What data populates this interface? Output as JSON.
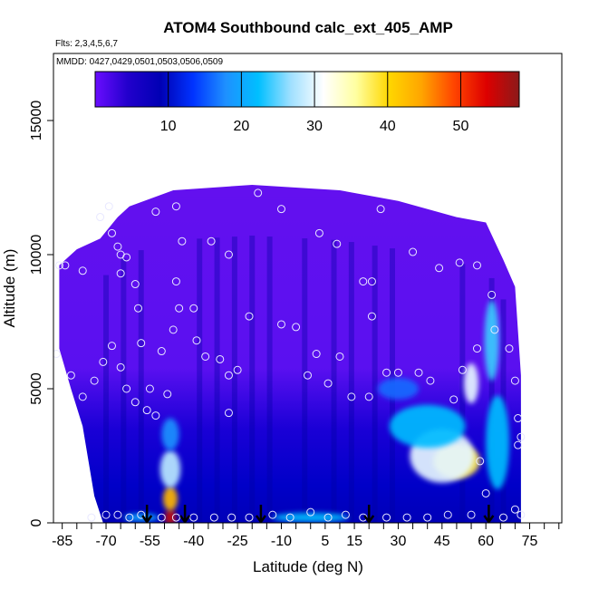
{
  "chart_data": {
    "type": "heatmap",
    "title": "ATOM4 Southbound calc_ext_405_AMP",
    "flights_note": "Flts: 2,3,4,5,6,7",
    "dates_note": "MMDD: 0427,0429,0501,0503,0506,0509",
    "xlabel": "Latitude (deg N)",
    "ylabel": "Altitude (m)",
    "xlim": [
      -88,
      86
    ],
    "ylim": [
      0,
      17500
    ],
    "xticks": [
      -85,
      -70,
      -55,
      -40,
      -25,
      -10,
      5,
      15,
      30,
      45,
      60,
      75
    ],
    "xtick_labels": [
      "-85",
      "-70",
      "-55",
      "-40",
      "-25",
      "-10",
      "5",
      "15",
      "30",
      "45",
      "60",
      "75"
    ],
    "yticks": [
      0,
      5000,
      10000,
      15000
    ],
    "ytick_labels": [
      "0",
      "5000",
      "10000",
      "15000"
    ],
    "colorbar": {
      "min": 0,
      "max": 58,
      "ticks": [
        10,
        20,
        30,
        40,
        50
      ],
      "tick_labels": [
        "10",
        "20",
        "30",
        "40",
        "50"
      ],
      "colors": [
        "#6a0dff",
        "#2200cc",
        "#0000b4",
        "#0033ff",
        "#1e90ff",
        "#00bfff",
        "#a0e0ff",
        "#ffffff",
        "#ffffa0",
        "#ffd700",
        "#ffa500",
        "#ff4500",
        "#dd0000",
        "#8b1a1a"
      ]
    },
    "envelope_top": [
      {
        "lat": -86,
        "alt": 9600
      },
      {
        "lat": -80,
        "alt": 10200
      },
      {
        "lat": -72,
        "alt": 10600
      },
      {
        "lat": -66,
        "alt": 11400
      },
      {
        "lat": -62,
        "alt": 11800
      },
      {
        "lat": -47,
        "alt": 12400
      },
      {
        "lat": -20,
        "alt": 12600
      },
      {
        "lat": 10,
        "alt": 12400
      },
      {
        "lat": 30,
        "alt": 12000
      },
      {
        "lat": 50,
        "alt": 11400
      },
      {
        "lat": 60,
        "alt": 11200
      },
      {
        "lat": 66,
        "alt": 9800
      },
      {
        "lat": 70,
        "alt": 8800
      },
      {
        "lat": 72,
        "alt": 5500
      }
    ],
    "envelope_bottom": [
      {
        "lat": -86,
        "alt": 6500
      },
      {
        "lat": -82,
        "alt": 5000
      },
      {
        "lat": -78,
        "alt": 3600
      },
      {
        "lat": -74,
        "alt": 1000
      },
      {
        "lat": -71,
        "alt": 0
      },
      {
        "lat": 72,
        "alt": 0
      }
    ],
    "hotspots": [
      {
        "lat": -48,
        "alt": 200,
        "value": 55,
        "width": 4,
        "height": 600
      },
      {
        "lat": -48,
        "alt": 900,
        "value": 43,
        "width": 5,
        "height": 900
      },
      {
        "lat": -48,
        "alt": 2000,
        "value": 28,
        "width": 7,
        "height": 1400
      },
      {
        "lat": -48,
        "alt": 3300,
        "value": 18,
        "width": 6,
        "height": 1200
      },
      {
        "lat": 50,
        "alt": 2300,
        "value": 38,
        "width": 16,
        "height": 1300
      },
      {
        "lat": 45,
        "alt": 2500,
        "value": 30,
        "width": 22,
        "height": 2000
      },
      {
        "lat": 40,
        "alt": 3600,
        "value": 22,
        "width": 26,
        "height": 1600
      },
      {
        "lat": 55,
        "alt": 5200,
        "value": 30,
        "width": 5,
        "height": 1500
      },
      {
        "lat": 62,
        "alt": 6800,
        "value": 24,
        "width": 5,
        "height": 3000
      },
      {
        "lat": 64,
        "alt": 3000,
        "value": 22,
        "width": 8,
        "height": 3500
      },
      {
        "lat": 0,
        "alt": 200,
        "value": 22,
        "width": 26,
        "height": 350
      },
      {
        "lat": -58,
        "alt": 200,
        "value": 20,
        "width": 12,
        "height": 300
      },
      {
        "lat": 30,
        "alt": 5000,
        "value": 16,
        "width": 14,
        "height": 800
      }
    ],
    "profile_markers_lat": [
      -56,
      -43,
      -17,
      20,
      61
    ],
    "sample_points": [
      {
        "lat": -86,
        "alt": 9600
      },
      {
        "lat": -84,
        "alt": 9600
      },
      {
        "lat": -78,
        "alt": 9400
      },
      {
        "lat": -72,
        "alt": 11400
      },
      {
        "lat": -69,
        "alt": 11800
      },
      {
        "lat": -68,
        "alt": 10800
      },
      {
        "lat": -66,
        "alt": 10300
      },
      {
        "lat": -65,
        "alt": 10000
      },
      {
        "lat": -63,
        "alt": 9900
      },
      {
        "lat": -65,
        "alt": 9300
      },
      {
        "lat": -60,
        "alt": 8900
      },
      {
        "lat": -59,
        "alt": 8000
      },
      {
        "lat": -53,
        "alt": 11600
      },
      {
        "lat": -46,
        "alt": 11800
      },
      {
        "lat": -44,
        "alt": 10500
      },
      {
        "lat": -46,
        "alt": 9000
      },
      {
        "lat": -45,
        "alt": 8000
      },
      {
        "lat": -40,
        "alt": 8000
      },
      {
        "lat": -47,
        "alt": 7200
      },
      {
        "lat": -34,
        "alt": 10500
      },
      {
        "lat": -28,
        "alt": 10000
      },
      {
        "lat": -18,
        "alt": 12300
      },
      {
        "lat": -10,
        "alt": 11700
      },
      {
        "lat": 3,
        "alt": 10800
      },
      {
        "lat": 9,
        "alt": 10400
      },
      {
        "lat": 18,
        "alt": 9000
      },
      {
        "lat": 21,
        "alt": 9000
      },
      {
        "lat": 24,
        "alt": 11700
      },
      {
        "lat": 35,
        "alt": 10100
      },
      {
        "lat": 44,
        "alt": 9500
      },
      {
        "lat": 51,
        "alt": 9700
      },
      {
        "lat": 57,
        "alt": 9600
      },
      {
        "lat": 62,
        "alt": 8500
      },
      {
        "lat": -87,
        "alt": 6300
      },
      {
        "lat": -82,
        "alt": 5500
      },
      {
        "lat": -78,
        "alt": 4700
      },
      {
        "lat": -74,
        "alt": 5300
      },
      {
        "lat": -71,
        "alt": 6000
      },
      {
        "lat": -68,
        "alt": 6600
      },
      {
        "lat": -65,
        "alt": 5800
      },
      {
        "lat": -63,
        "alt": 5000
      },
      {
        "lat": -60,
        "alt": 4500
      },
      {
        "lat": -58,
        "alt": 6700
      },
      {
        "lat": -55,
        "alt": 5000
      },
      {
        "lat": -53,
        "alt": 4000
      },
      {
        "lat": -51,
        "alt": 6400
      },
      {
        "lat": -49,
        "alt": 4800
      },
      {
        "lat": -39,
        "alt": 6800
      },
      {
        "lat": -36,
        "alt": 6200
      },
      {
        "lat": -31,
        "alt": 6100
      },
      {
        "lat": -28,
        "alt": 5500
      },
      {
        "lat": -25,
        "alt": 5700
      },
      {
        "lat": -21,
        "alt": 7700
      },
      {
        "lat": -10,
        "alt": 7400
      },
      {
        "lat": -5,
        "alt": 7300
      },
      {
        "lat": -1,
        "alt": 5500
      },
      {
        "lat": 2,
        "alt": 6300
      },
      {
        "lat": 6,
        "alt": 5200
      },
      {
        "lat": 10,
        "alt": 6200
      },
      {
        "lat": 14,
        "alt": 4700
      },
      {
        "lat": 21,
        "alt": 7700
      },
      {
        "lat": 20,
        "alt": 4700
      },
      {
        "lat": 26,
        "alt": 5600
      },
      {
        "lat": 30,
        "alt": 5600
      },
      {
        "lat": 37,
        "alt": 5600
      },
      {
        "lat": 41,
        "alt": 5300
      },
      {
        "lat": 49,
        "alt": 4600
      },
      {
        "lat": 52,
        "alt": 5700
      },
      {
        "lat": 57,
        "alt": 6500
      },
      {
        "lat": 63,
        "alt": 7200
      },
      {
        "lat": 68,
        "alt": 6500
      },
      {
        "lat": 70,
        "alt": 5300
      },
      {
        "lat": -28,
        "alt": 4100
      },
      {
        "lat": -56,
        "alt": 4200
      },
      {
        "lat": 71,
        "alt": 3900
      },
      {
        "lat": 72,
        "alt": 3200
      },
      {
        "lat": 71,
        "alt": 2900
      },
      {
        "lat": 58,
        "alt": 2300
      },
      {
        "lat": 60,
        "alt": 1100
      },
      {
        "lat": 55,
        "alt": 300
      },
      {
        "lat": 47,
        "alt": 300
      },
      {
        "lat": -75,
        "alt": 200
      },
      {
        "lat": -70,
        "alt": 300
      },
      {
        "lat": -66,
        "alt": 300
      },
      {
        "lat": -62,
        "alt": 200
      },
      {
        "lat": -58,
        "alt": 300
      },
      {
        "lat": -51,
        "alt": 200
      },
      {
        "lat": -46,
        "alt": 200
      },
      {
        "lat": -40,
        "alt": 200
      },
      {
        "lat": -33,
        "alt": 200
      },
      {
        "lat": -27,
        "alt": 200
      },
      {
        "lat": -21,
        "alt": 200
      },
      {
        "lat": -13,
        "alt": 300
      },
      {
        "lat": -7,
        "alt": 200
      },
      {
        "lat": 0,
        "alt": 400
      },
      {
        "lat": 6,
        "alt": 200
      },
      {
        "lat": 12,
        "alt": 300
      },
      {
        "lat": 18,
        "alt": 200
      },
      {
        "lat": 26,
        "alt": 200
      },
      {
        "lat": 33,
        "alt": 200
      },
      {
        "lat": 40,
        "alt": 200
      },
      {
        "lat": 66,
        "alt": 200
      },
      {
        "lat": 70,
        "alt": 500
      },
      {
        "lat": 72,
        "alt": 300
      }
    ]
  }
}
